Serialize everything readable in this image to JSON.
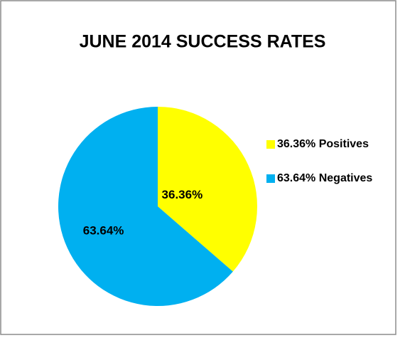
{
  "chart_data": {
    "type": "pie",
    "title": "JUNE 2014 SUCCESS RATES",
    "categories": [
      "36.36% Positives",
      "63.64% Negatives"
    ],
    "values": [
      36.36,
      63.64
    ],
    "value_labels": [
      "36.36%",
      "63.64%"
    ],
    "colors": [
      "#ffff00",
      "#00b0f0"
    ],
    "legend": "right"
  }
}
